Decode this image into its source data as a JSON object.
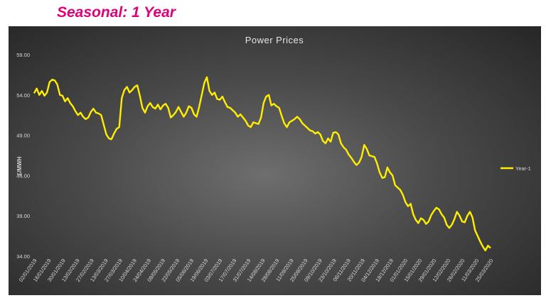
{
  "heading": "Seasonal: 1 Year",
  "chart_data": {
    "type": "line",
    "title": "Power Prices",
    "ylabel": "£/MWH",
    "xlabel": "",
    "ylim": [
      34,
      59
    ],
    "y_ticks": [
      "59.00",
      "54.00",
      "49.00",
      "44.00",
      "39.00",
      "34.00"
    ],
    "x_ticks": [
      "02/01/2019",
      "16/01/2019",
      "30/01/2019",
      "13/02/2019",
      "27/02/2019",
      "13/03/2019",
      "27/03/2019",
      "10/04/2019",
      "24/04/2019",
      "08/05/2019",
      "22/05/2019",
      "05/06/2019",
      "19/06/2019",
      "03/07/2019",
      "17/07/2019",
      "31/07/2019",
      "14/08/2019",
      "28/08/2019",
      "11/09/2019",
      "25/09/2019",
      "09/10/2019",
      "23/10/2019",
      "06/11/2019",
      "20/11/2019",
      "04/12/2019",
      "18/12/2019",
      "01/01/2020",
      "15/01/2020",
      "29/01/2020",
      "12/02/2020",
      "26/02/2020",
      "11/03/2020",
      "25/03/2020"
    ],
    "grid": false,
    "legend_position": "right",
    "series": [
      {
        "name": "Year-1",
        "color": "#ffee00",
        "values": [
          54.2,
          54.8,
          54.0,
          54.5,
          53.9,
          54.3,
          55.6,
          55.9,
          55.8,
          55.3,
          54.0,
          53.9,
          53.2,
          53.6,
          53.0,
          52.6,
          52.0,
          51.5,
          51.8,
          51.3,
          51.0,
          51.2,
          51.9,
          52.3,
          51.8,
          51.7,
          51.5,
          50.3,
          49.1,
          48.6,
          48.5,
          49.2,
          49.8,
          50.0,
          53.6,
          54.6,
          55.0,
          54.3,
          54.6,
          55.0,
          55.2,
          53.9,
          52.4,
          51.8,
          52.6,
          53.0,
          52.5,
          52.3,
          52.8,
          52.2,
          52.7,
          52.9,
          52.4,
          51.2,
          51.5,
          51.9,
          52.5,
          51.9,
          51.3,
          51.8,
          52.6,
          52.4,
          51.6,
          51.3,
          52.5,
          54.0,
          55.5,
          56.2,
          54.5,
          54.0,
          54.3,
          53.5,
          53.4,
          53.8,
          53.1,
          52.5,
          52.4,
          52.1,
          51.8,
          51.3,
          51.6,
          51.2,
          50.8,
          50.2,
          50.0,
          50.6,
          50.5,
          50.4,
          51.2,
          53.0,
          53.8,
          54.0,
          52.7,
          52.9,
          52.6,
          52.4,
          51.4,
          50.5,
          50.0,
          50.6,
          50.8,
          51.0,
          51.3,
          51.0,
          50.5,
          50.2,
          49.9,
          49.6,
          49.5,
          49.2,
          49.4,
          49.1,
          48.3,
          48.0,
          48.6,
          48.2,
          49.3,
          49.4,
          49.1,
          48.0,
          47.5,
          47.2,
          46.6,
          46.2,
          45.7,
          45.3,
          45.6,
          46.3,
          47.8,
          47.3,
          46.5,
          46.4,
          46.3,
          45.5,
          44.4,
          43.7,
          43.8,
          45.0,
          44.4,
          44.0,
          42.8,
          42.5,
          42.2,
          41.6,
          40.7,
          40.2,
          40.5,
          39.2,
          38.5,
          38.1,
          38.7,
          38.5,
          38.0,
          38.3,
          39.1,
          39.6,
          40.0,
          39.8,
          39.2,
          38.8,
          37.9,
          37.5,
          37.9,
          38.6,
          39.5,
          39.0,
          38.3,
          38.2,
          39.0,
          39.5,
          38.8,
          37.2,
          36.5,
          35.8,
          35.2,
          34.7,
          35.3,
          35.0
        ]
      }
    ]
  }
}
